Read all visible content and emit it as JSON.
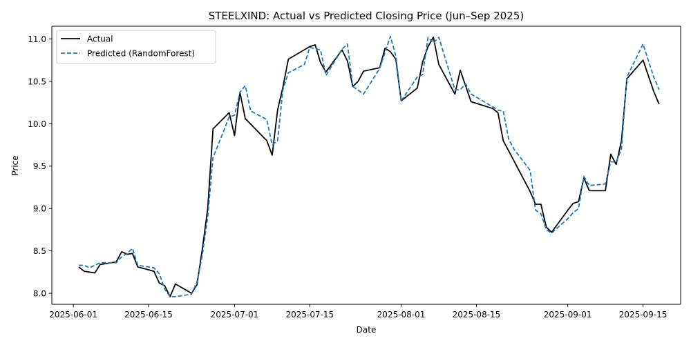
{
  "chart_data": {
    "type": "line",
    "title": "STEELXIND: Actual vs Predicted Closing Price (Jun–Sep 2025)",
    "xlabel": "Date",
    "ylabel": "Price",
    "xlim": [
      "2025-05-28",
      "2025-09-22"
    ],
    "ylim": [
      7.87,
      11.15
    ],
    "x_ticks": [
      "2025-06-01",
      "2025-06-15",
      "2025-07-01",
      "2025-07-15",
      "2025-08-01",
      "2025-08-15",
      "2025-09-01",
      "2025-09-15"
    ],
    "y_ticks": [
      "8.0",
      "8.5",
      "9.0",
      "9.5",
      "10.0",
      "10.5",
      "11.0"
    ],
    "legend_position": "top-left",
    "grid": false,
    "series": [
      {
        "name": "Actual",
        "color": "#000000",
        "style": "solid",
        "points": [
          [
            "2025-06-02",
            8.31
          ],
          [
            "2025-06-03",
            8.26
          ],
          [
            "2025-06-05",
            8.24
          ],
          [
            "2025-06-06",
            8.34
          ],
          [
            "2025-06-09",
            8.37
          ],
          [
            "2025-06-10",
            8.49
          ],
          [
            "2025-06-11",
            8.46
          ],
          [
            "2025-06-12",
            8.47
          ],
          [
            "2025-06-13",
            8.31
          ],
          [
            "2025-06-16",
            8.26
          ],
          [
            "2025-06-17",
            8.12
          ],
          [
            "2025-06-18",
            8.09
          ],
          [
            "2025-06-19",
            7.96
          ],
          [
            "2025-06-20",
            8.11
          ],
          [
            "2025-06-23",
            8.0
          ],
          [
            "2025-06-24",
            8.1
          ],
          [
            "2025-06-25",
            8.52
          ],
          [
            "2025-06-26",
            9.0
          ],
          [
            "2025-06-27",
            9.94
          ],
          [
            "2025-06-30",
            10.13
          ],
          [
            "2025-07-01",
            9.86
          ],
          [
            "2025-07-02",
            10.37
          ],
          [
            "2025-07-03",
            10.06
          ],
          [
            "2025-07-07",
            9.8
          ],
          [
            "2025-07-08",
            9.63
          ],
          [
            "2025-07-09",
            10.16
          ],
          [
            "2025-07-10",
            10.43
          ],
          [
            "2025-07-11",
            10.76
          ],
          [
            "2025-07-15",
            10.91
          ],
          [
            "2025-07-16",
            10.93
          ],
          [
            "2025-07-17",
            10.72
          ],
          [
            "2025-07-18",
            10.61
          ],
          [
            "2025-07-21",
            10.87
          ],
          [
            "2025-07-22",
            10.74
          ],
          [
            "2025-07-23",
            10.44
          ],
          [
            "2025-07-24",
            10.5
          ],
          [
            "2025-07-25",
            10.62
          ],
          [
            "2025-07-28",
            10.66
          ],
          [
            "2025-07-29",
            10.89
          ],
          [
            "2025-07-30",
            10.85
          ],
          [
            "2025-07-31",
            10.76
          ],
          [
            "2025-08-01",
            10.27
          ],
          [
            "2025-08-04",
            10.42
          ],
          [
            "2025-08-05",
            10.73
          ],
          [
            "2025-08-06",
            10.91
          ],
          [
            "2025-08-07",
            11.02
          ],
          [
            "2025-08-08",
            10.7
          ],
          [
            "2025-08-11",
            10.35
          ],
          [
            "2025-08-12",
            10.63
          ],
          [
            "2025-08-14",
            10.26
          ],
          [
            "2025-08-18",
            10.18
          ],
          [
            "2025-08-19",
            10.13
          ],
          [
            "2025-08-20",
            9.8
          ],
          [
            "2025-08-21",
            9.68
          ],
          [
            "2025-08-25",
            9.2
          ],
          [
            "2025-08-26",
            9.05
          ],
          [
            "2025-08-27",
            9.05
          ],
          [
            "2025-08-28",
            8.78
          ],
          [
            "2025-08-29",
            8.72
          ],
          [
            "2025-09-01",
            8.98
          ],
          [
            "2025-09-02",
            9.06
          ],
          [
            "2025-09-03",
            9.08
          ],
          [
            "2025-09-04",
            9.36
          ],
          [
            "2025-09-05",
            9.21
          ],
          [
            "2025-09-08",
            9.21
          ],
          [
            "2025-09-09",
            9.64
          ],
          [
            "2025-09-10",
            9.52
          ],
          [
            "2025-09-11",
            9.8
          ],
          [
            "2025-09-12",
            10.53
          ],
          [
            "2025-09-15",
            10.75
          ],
          [
            "2025-09-17",
            10.38
          ],
          [
            "2025-09-18",
            10.23
          ]
        ]
      },
      {
        "name": "Predicted (RandomForest)",
        "color": "#1f77b4",
        "style": "dashed",
        "points": [
          [
            "2025-06-02",
            8.33
          ],
          [
            "2025-06-03",
            8.33
          ],
          [
            "2025-06-04",
            8.3
          ],
          [
            "2025-06-06",
            8.36
          ],
          [
            "2025-06-09",
            8.36
          ],
          [
            "2025-06-10",
            8.43
          ],
          [
            "2025-06-11",
            8.47
          ],
          [
            "2025-06-12",
            8.53
          ],
          [
            "2025-06-13",
            8.33
          ],
          [
            "2025-06-16",
            8.3
          ],
          [
            "2025-06-17",
            8.23
          ],
          [
            "2025-06-18",
            8.05
          ],
          [
            "2025-06-19",
            7.96
          ],
          [
            "2025-06-20",
            7.96
          ],
          [
            "2025-06-23",
            7.99
          ],
          [
            "2025-06-24",
            8.13
          ],
          [
            "2025-06-25",
            8.45
          ],
          [
            "2025-06-26",
            8.9
          ],
          [
            "2025-06-27",
            9.6
          ],
          [
            "2025-06-30",
            10.08
          ],
          [
            "2025-07-01",
            10.1
          ],
          [
            "2025-07-02",
            10.37
          ],
          [
            "2025-07-03",
            10.45
          ],
          [
            "2025-07-04",
            10.15
          ],
          [
            "2025-07-07",
            10.05
          ],
          [
            "2025-07-08",
            9.75
          ],
          [
            "2025-07-09",
            9.8
          ],
          [
            "2025-07-10",
            10.4
          ],
          [
            "2025-07-11",
            10.6
          ],
          [
            "2025-07-14",
            10.7
          ],
          [
            "2025-07-15",
            10.9
          ],
          [
            "2025-07-17",
            10.87
          ],
          [
            "2025-07-18",
            10.57
          ],
          [
            "2025-07-21",
            10.88
          ],
          [
            "2025-07-22",
            10.94
          ],
          [
            "2025-07-23",
            10.44
          ],
          [
            "2025-07-25",
            10.35
          ],
          [
            "2025-07-28",
            10.65
          ],
          [
            "2025-07-30",
            11.03
          ],
          [
            "2025-07-31",
            10.8
          ],
          [
            "2025-08-01",
            10.27
          ],
          [
            "2025-08-04",
            10.55
          ],
          [
            "2025-08-05",
            10.58
          ],
          [
            "2025-08-06",
            11.02
          ],
          [
            "2025-08-07",
            10.95
          ],
          [
            "2025-08-08",
            11.02
          ],
          [
            "2025-08-11",
            10.4
          ],
          [
            "2025-08-12",
            10.4
          ],
          [
            "2025-08-13",
            10.47
          ],
          [
            "2025-08-14",
            10.35
          ],
          [
            "2025-08-18",
            10.2
          ],
          [
            "2025-08-19",
            10.16
          ],
          [
            "2025-08-20",
            10.15
          ],
          [
            "2025-08-21",
            9.82
          ],
          [
            "2025-08-22",
            9.7
          ],
          [
            "2025-08-25",
            9.45
          ],
          [
            "2025-08-26",
            8.98
          ],
          [
            "2025-08-27",
            8.94
          ],
          [
            "2025-08-28",
            8.75
          ],
          [
            "2025-08-29",
            8.71
          ],
          [
            "2025-09-01",
            8.88
          ],
          [
            "2025-09-02",
            8.95
          ],
          [
            "2025-09-03",
            9.0
          ],
          [
            "2025-09-04",
            9.38
          ],
          [
            "2025-09-05",
            9.27
          ],
          [
            "2025-09-08",
            9.29
          ],
          [
            "2025-09-09",
            9.55
          ],
          [
            "2025-09-10",
            9.55
          ],
          [
            "2025-09-11",
            9.7
          ],
          [
            "2025-09-12",
            10.55
          ],
          [
            "2025-09-15",
            10.94
          ],
          [
            "2025-09-17",
            10.55
          ],
          [
            "2025-09-18",
            10.4
          ]
        ]
      }
    ]
  }
}
